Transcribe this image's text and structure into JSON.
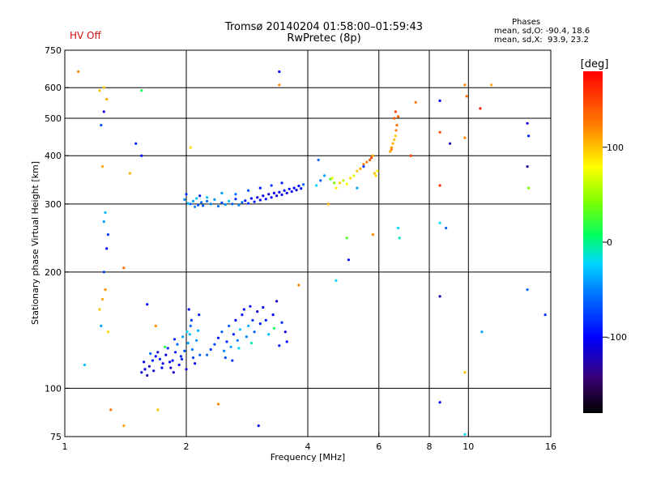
{
  "header": {
    "title": "Tromsø 20140204 01:58:00–01:59:43",
    "subtitle": "RwPretec (8p)",
    "status": "HV Off"
  },
  "stats": {
    "heading": "Phases",
    "line_o": "mean, sd,O: -90.4, 18.6",
    "line_x": "mean, sd,X:  93.9, 23.2"
  },
  "colors": {
    "status_text": "#cc1010",
    "grid": "#000000"
  },
  "colorbar": {
    "unit": "[deg]",
    "min": -180,
    "max": 180,
    "ticks": [
      {
        "value": 100,
        "label": "100"
      },
      {
        "value": 0,
        "label": "0"
      },
      {
        "value": -100,
        "label": "-100"
      }
    ]
  },
  "chart_data": {
    "type": "scatter",
    "xlabel": "Frequency [MHz]",
    "ylabel": "Stationary phase Virtual Height [km]",
    "xscale": "log",
    "yscale": "log",
    "xlim": [
      1,
      16
    ],
    "ylim": [
      75,
      750
    ],
    "x_ticks": [
      {
        "value": 1,
        "label": "1"
      },
      {
        "value": 2,
        "label": "2"
      },
      {
        "value": 4,
        "label": "4"
      },
      {
        "value": 6,
        "label": "6"
      },
      {
        "value": 8,
        "label": "8"
      },
      {
        "value": 10,
        "label": "10"
      },
      {
        "value": 16,
        "label": "16"
      }
    ],
    "y_ticks": [
      {
        "value": 75,
        "label": "75"
      },
      {
        "value": 100,
        "label": "100"
      },
      {
        "value": 200,
        "label": "200"
      },
      {
        "value": 300,
        "label": "300"
      },
      {
        "value": 400,
        "label": "400"
      },
      {
        "value": 500,
        "label": "500"
      },
      {
        "value": 600,
        "label": "600"
      },
      {
        "value": 750,
        "label": "750"
      }
    ],
    "grid_x": [
      2,
      4,
      6,
      8,
      10
    ],
    "grid_y": [
      100,
      200,
      300,
      400,
      500,
      600
    ],
    "points": [
      [
        1.55,
        110,
        -110
      ],
      [
        1.58,
        112,
        -105
      ],
      [
        1.62,
        114,
        -115
      ],
      [
        1.65,
        118,
        -95
      ],
      [
        1.68,
        121,
        -100
      ],
      [
        1.7,
        124,
        -120
      ],
      [
        1.72,
        119,
        -90
      ],
      [
        1.75,
        116,
        -105
      ],
      [
        1.78,
        122,
        -110
      ],
      [
        1.8,
        127,
        -85
      ],
      [
        1.83,
        113,
        -115
      ],
      [
        1.85,
        118,
        -100
      ],
      [
        1.88,
        124,
        -95
      ],
      [
        1.9,
        130,
        -60
      ],
      [
        1.92,
        115,
        -105
      ],
      [
        1.95,
        119,
        -90
      ],
      [
        1.98,
        125,
        -70
      ],
      [
        2.0,
        112,
        -110
      ],
      [
        2.02,
        131,
        -40
      ],
      [
        2.04,
        138,
        -30
      ],
      [
        2.05,
        145,
        -60
      ],
      [
        2.06,
        150,
        -80
      ],
      [
        2.07,
        126,
        -50
      ],
      [
        2.08,
        120,
        -75
      ],
      [
        2.1,
        116,
        -100
      ],
      [
        2.12,
        133,
        -45
      ],
      [
        2.14,
        141,
        -35
      ],
      [
        2.15,
        155,
        -90
      ],
      [
        2.16,
        122,
        -60
      ],
      [
        1.6,
        108,
        -120
      ],
      [
        1.66,
        111,
        -110
      ],
      [
        1.74,
        113,
        -100
      ],
      [
        1.82,
        117,
        -105
      ],
      [
        1.86,
        110,
        -115
      ],
      [
        1.94,
        121,
        -85
      ],
      [
        2.01,
        140,
        -20
      ],
      [
        2.03,
        160,
        -95
      ],
      [
        1.57,
        117,
        -105
      ],
      [
        1.63,
        123,
        -60
      ],
      [
        1.77,
        128,
        20
      ],
      [
        1.87,
        134,
        -90
      ],
      [
        1.96,
        136,
        -40
      ],
      [
        2.3,
        126,
        -80
      ],
      [
        2.35,
        130,
        -70
      ],
      [
        2.4,
        135,
        -95
      ],
      [
        2.45,
        140,
        -60
      ],
      [
        2.48,
        125,
        -50
      ],
      [
        2.52,
        132,
        -85
      ],
      [
        2.55,
        145,
        -65
      ],
      [
        2.58,
        128,
        -40
      ],
      [
        2.62,
        138,
        -90
      ],
      [
        2.65,
        150,
        -100
      ],
      [
        2.68,
        133,
        -55
      ],
      [
        2.72,
        142,
        -30
      ],
      [
        2.75,
        155,
        -95
      ],
      [
        2.78,
        160,
        -100
      ],
      [
        2.82,
        136,
        -50
      ],
      [
        2.85,
        145,
        -35
      ],
      [
        2.88,
        163,
        -105
      ],
      [
        2.92,
        150,
        -80
      ],
      [
        2.95,
        140,
        -60
      ],
      [
        3.0,
        158,
        -110
      ],
      [
        3.05,
        147,
        -90
      ],
      [
        3.1,
        162,
        -105
      ],
      [
        3.15,
        150,
        -95
      ],
      [
        3.2,
        138,
        -30
      ],
      [
        3.28,
        155,
        -100
      ],
      [
        3.35,
        168,
        -115
      ],
      [
        3.45,
        148,
        -85
      ],
      [
        3.52,
        140,
        -110
      ],
      [
        3.55,
        132,
        -100
      ],
      [
        2.5,
        120,
        -70
      ],
      [
        2.7,
        127,
        -20
      ],
      [
        2.9,
        131,
        -10
      ],
      [
        3.4,
        129,
        -90
      ],
      [
        2.25,
        122,
        -60
      ],
      [
        2.6,
        118,
        -80
      ],
      [
        3.3,
        143,
        10
      ],
      [
        2.05,
        300,
        -60
      ],
      [
        2.08,
        305,
        -40
      ],
      [
        2.1,
        295,
        -50
      ],
      [
        2.12,
        310,
        -30
      ],
      [
        2.14,
        298,
        -70
      ],
      [
        2.16,
        315,
        -90
      ],
      [
        2.18,
        303,
        -55
      ],
      [
        2.2,
        297,
        -65
      ],
      [
        1.98,
        308,
        -45
      ],
      [
        2.0,
        318,
        -80
      ],
      [
        2.02,
        301,
        -35
      ],
      [
        2.25,
        305,
        -60
      ],
      [
        2.3,
        300,
        -50
      ],
      [
        2.35,
        308,
        -40
      ],
      [
        2.4,
        296,
        -55
      ],
      [
        2.45,
        302,
        -70
      ],
      [
        2.5,
        299,
        -45
      ],
      [
        2.55,
        305,
        -30
      ],
      [
        2.6,
        300,
        -65
      ],
      [
        2.65,
        309,
        -85
      ],
      [
        2.7,
        298,
        -50
      ],
      [
        2.75,
        303,
        -60
      ],
      [
        2.8,
        306,
        -95
      ],
      [
        2.85,
        301,
        -80
      ],
      [
        2.9,
        310,
        -100
      ],
      [
        2.95,
        304,
        -90
      ],
      [
        3.0,
        312,
        -110
      ],
      [
        3.05,
        307,
        -100
      ],
      [
        3.1,
        315,
        -105
      ],
      [
        3.15,
        309,
        -95
      ],
      [
        3.2,
        318,
        -110
      ],
      [
        3.25,
        312,
        -105
      ],
      [
        3.3,
        320,
        -100
      ],
      [
        3.35,
        315,
        -110
      ],
      [
        3.4,
        322,
        -95
      ],
      [
        3.45,
        317,
        -105
      ],
      [
        3.5,
        325,
        -100
      ],
      [
        3.55,
        320,
        -110
      ],
      [
        3.6,
        328,
        -95
      ],
      [
        3.65,
        323,
        -105
      ],
      [
        3.7,
        330,
        -100
      ],
      [
        3.75,
        326,
        -110
      ],
      [
        3.8,
        334,
        -100
      ],
      [
        3.85,
        329,
        -95
      ],
      [
        3.9,
        337,
        -60
      ],
      [
        3.45,
        340,
        -90
      ],
      [
        3.25,
        335,
        -80
      ],
      [
        3.05,
        330,
        -95
      ],
      [
        2.85,
        325,
        -70
      ],
      [
        2.65,
        318,
        -55
      ],
      [
        2.45,
        320,
        -40
      ],
      [
        2.25,
        312,
        -30
      ],
      [
        4.2,
        335,
        -20
      ],
      [
        4.3,
        345,
        -60
      ],
      [
        4.4,
        355,
        -40
      ],
      [
        4.55,
        348,
        30
      ],
      [
        4.6,
        350,
        70
      ],
      [
        4.65,
        340,
        40
      ],
      [
        4.7,
        330,
        85
      ],
      [
        4.8,
        340,
        95
      ],
      [
        4.9,
        345,
        60
      ],
      [
        5.0,
        338,
        80
      ],
      [
        5.1,
        350,
        90
      ],
      [
        5.2,
        355,
        70
      ],
      [
        5.3,
        365,
        100
      ],
      [
        5.4,
        370,
        110
      ],
      [
        5.5,
        380,
        125
      ],
      [
        5.6,
        385,
        120
      ],
      [
        5.7,
        390,
        140
      ],
      [
        5.75,
        395,
        150
      ],
      [
        5.8,
        400,
        110
      ],
      [
        5.85,
        360,
        100
      ],
      [
        5.9,
        355,
        90
      ],
      [
        5.95,
        365,
        80
      ],
      [
        5.5,
        375,
        -80
      ],
      [
        5.3,
        330,
        -40
      ],
      [
        6.4,
        410,
        110
      ],
      [
        6.45,
        420,
        115
      ],
      [
        6.5,
        430,
        105
      ],
      [
        6.55,
        440,
        100
      ],
      [
        6.6,
        450,
        95
      ],
      [
        6.62,
        465,
        125
      ],
      [
        6.65,
        480,
        130
      ],
      [
        6.55,
        500,
        140
      ],
      [
        6.6,
        520,
        150
      ],
      [
        6.7,
        505,
        135
      ],
      [
        6.45,
        415,
        120
      ],
      [
        1.08,
        660,
        120
      ],
      [
        1.12,
        115,
        -30
      ],
      [
        1.22,
        160,
        100
      ],
      [
        1.24,
        170,
        110
      ],
      [
        1.26,
        180,
        115
      ],
      [
        1.28,
        140,
        90
      ],
      [
        1.25,
        200,
        -80
      ],
      [
        1.27,
        230,
        -100
      ],
      [
        1.28,
        250,
        -80
      ],
      [
        1.25,
        270,
        -40
      ],
      [
        1.26,
        285,
        -30
      ],
      [
        1.24,
        375,
        110
      ],
      [
        1.23,
        480,
        -70
      ],
      [
        1.25,
        520,
        -110
      ],
      [
        1.27,
        560,
        110
      ],
      [
        1.22,
        590,
        100
      ],
      [
        1.25,
        600,
        100
      ],
      [
        1.4,
        205,
        130
      ],
      [
        1.45,
        360,
        105
      ],
      [
        1.5,
        430,
        -90
      ],
      [
        1.55,
        590,
        10
      ],
      [
        1.6,
        165,
        -100
      ],
      [
        1.68,
        145,
        120
      ],
      [
        1.7,
        88,
        100
      ],
      [
        1.3,
        88,
        130
      ],
      [
        1.4,
        80,
        110
      ],
      [
        1.55,
        400,
        -100
      ],
      [
        2.05,
        420,
        90
      ],
      [
        2.4,
        91,
        120
      ],
      [
        3.02,
        80,
        -100
      ],
      [
        3.4,
        660,
        -100
      ],
      [
        3.4,
        610,
        120
      ],
      [
        3.8,
        185,
        120
      ],
      [
        4.25,
        390,
        -60
      ],
      [
        4.5,
        300,
        110
      ],
      [
        4.7,
        190,
        -20
      ],
      [
        5.05,
        215,
        -100
      ],
      [
        5.0,
        245,
        30
      ],
      [
        5.8,
        250,
        120
      ],
      [
        6.7,
        260,
        -20
      ],
      [
        6.75,
        245,
        -10
      ],
      [
        7.2,
        400,
        150
      ],
      [
        7.4,
        550,
        130
      ],
      [
        8.5,
        555,
        -100
      ],
      [
        8.5,
        460,
        150
      ],
      [
        8.5,
        335,
        160
      ],
      [
        8.5,
        268,
        -20
      ],
      [
        8.5,
        173,
        -130
      ],
      [
        8.5,
        92,
        -100
      ],
      [
        8.8,
        260,
        -60
      ],
      [
        9.0,
        430,
        -120
      ],
      [
        9.8,
        610,
        120
      ],
      [
        9.9,
        570,
        130
      ],
      [
        9.8,
        445,
        120
      ],
      [
        9.8,
        110,
        100
      ],
      [
        10.7,
        530,
        170
      ],
      [
        11.4,
        610,
        110
      ],
      [
        10.8,
        140,
        -40
      ],
      [
        14.0,
        485,
        -110
      ],
      [
        14.1,
        450,
        -90
      ],
      [
        14.0,
        375,
        -130
      ],
      [
        14.1,
        330,
        40
      ],
      [
        14.0,
        180,
        -60
      ],
      [
        15.5,
        155,
        -80
      ],
      [
        9.8,
        76,
        -20
      ],
      [
        1.23,
        145,
        -40
      ]
    ]
  }
}
